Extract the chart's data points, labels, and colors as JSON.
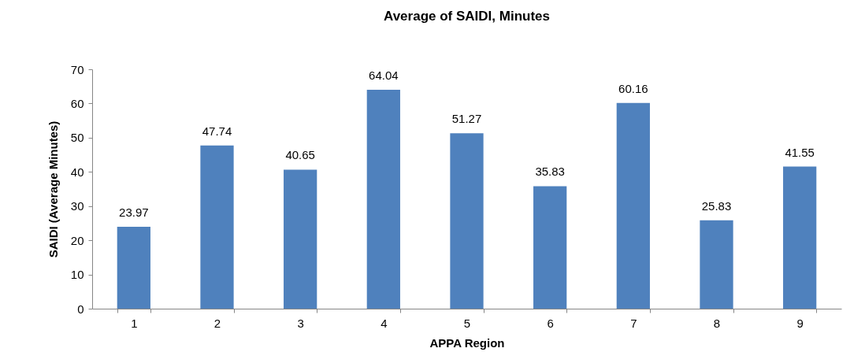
{
  "chart_data": {
    "type": "bar",
    "title": "Average of SAIDI, Minutes",
    "xlabel": "APPA Region",
    "ylabel": "SAIDI (Average Minutes)",
    "categories": [
      "1",
      "2",
      "3",
      "4",
      "5",
      "6",
      "7",
      "8",
      "9"
    ],
    "values": [
      23.97,
      47.74,
      40.65,
      64.04,
      51.27,
      35.83,
      60.16,
      25.83,
      41.55
    ],
    "color": "#4f81bd",
    "ylim": [
      0,
      70
    ],
    "yticks": [
      0,
      10,
      20,
      30,
      40,
      50,
      60,
      70
    ],
    "grid": false,
    "data_labels": true
  }
}
